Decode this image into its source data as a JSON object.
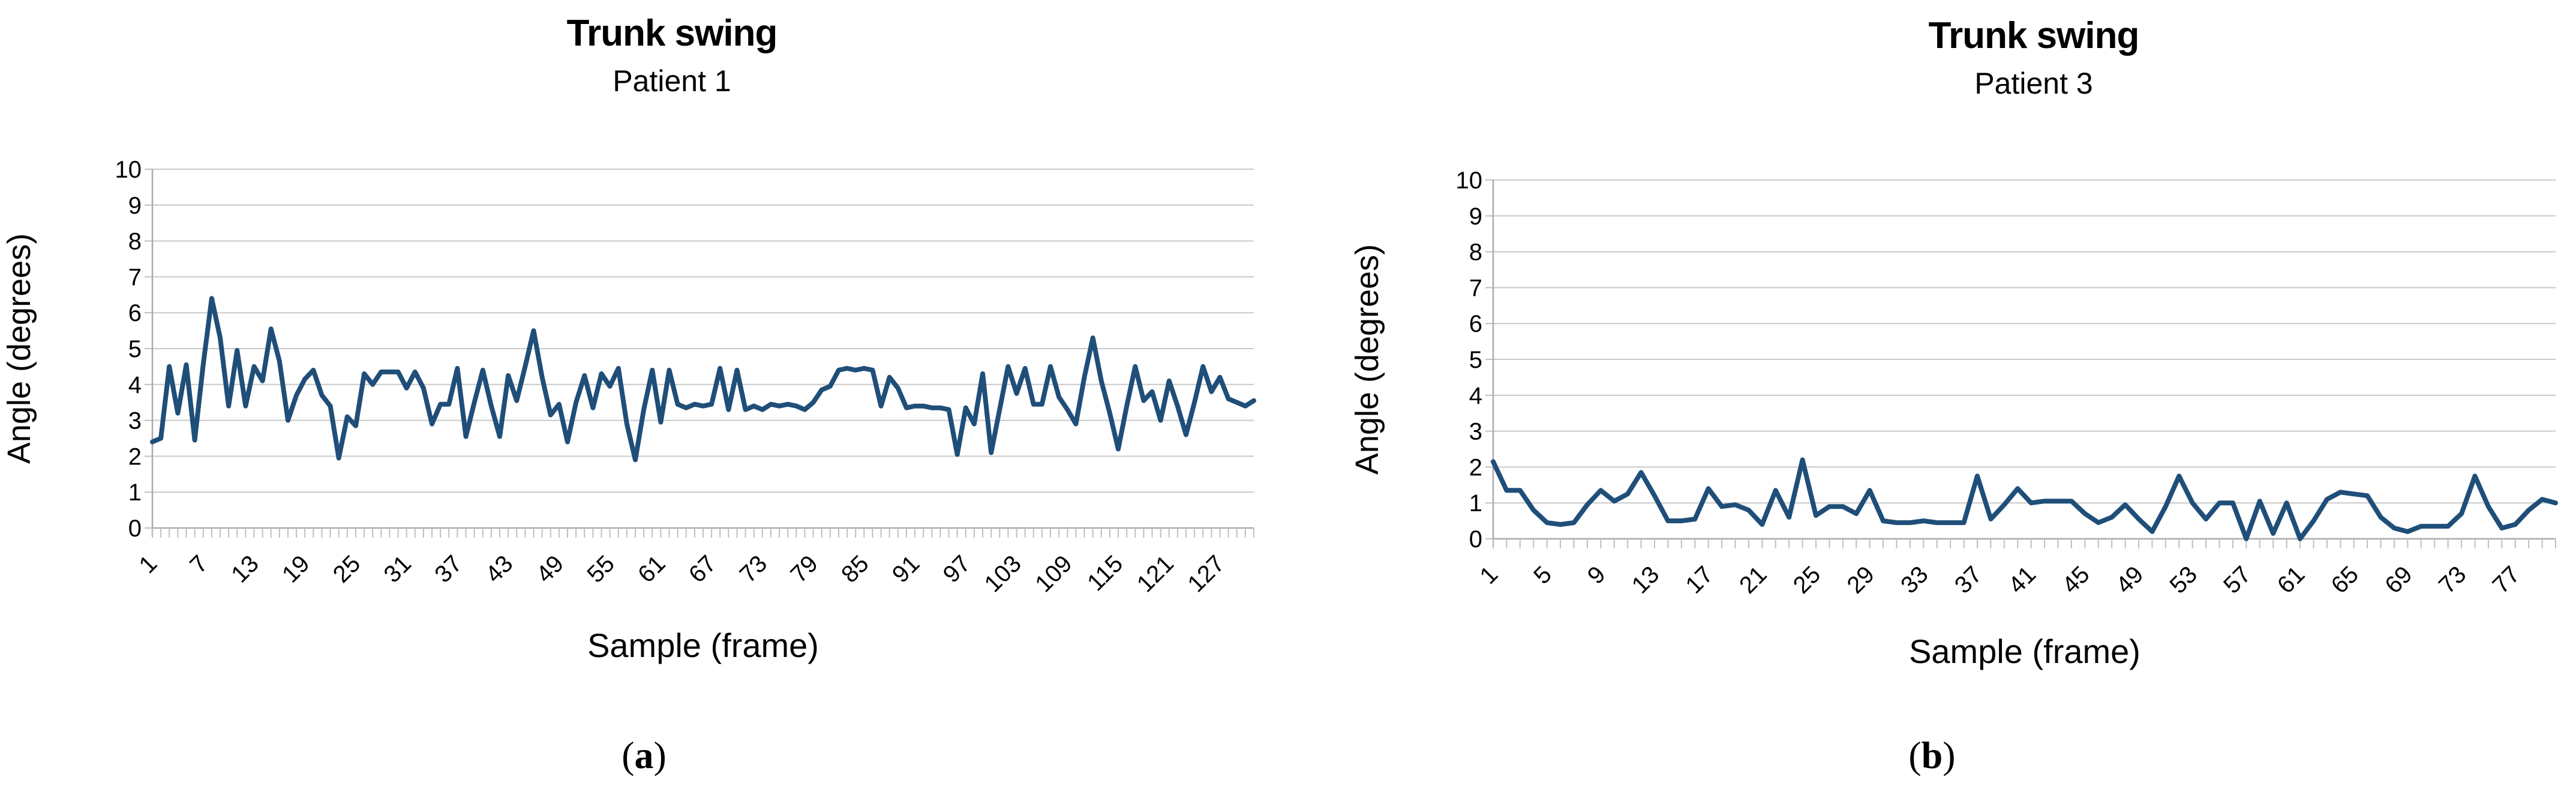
{
  "figure": {
    "background": "#FFFFFF",
    "line_color": "#1F4E79",
    "gridline_color": "#C9C9C9",
    "axis_color": "#ABABAB",
    "tick_color": "#BFBFBF",
    "text_color": "#000000"
  },
  "chart_data": [
    {
      "type": "line",
      "id": "patient1",
      "title": "Trunk swing",
      "subtitle": "Patient 1",
      "xlabel": "Sample (frame)",
      "ylabel": "Angle (degrees)",
      "ylim": [
        0,
        10
      ],
      "yticks": [
        0,
        1,
        2,
        3,
        4,
        5,
        6,
        7,
        8,
        9,
        10
      ],
      "xtick_labels": [
        1,
        7,
        13,
        19,
        25,
        31,
        37,
        43,
        49,
        55,
        61,
        67,
        73,
        79,
        85,
        91,
        97,
        103,
        109,
        115,
        121,
        127
      ],
      "grid": "horizontal",
      "legend": "none",
      "caption": {
        "open": "(",
        "label": "a",
        "close": ")"
      },
      "x_start": 1,
      "values": [
        2.4,
        2.5,
        4.5,
        3.2,
        4.55,
        2.45,
        4.55,
        6.4,
        5.3,
        3.4,
        4.95,
        3.4,
        4.5,
        4.1,
        5.55,
        4.65,
        3.0,
        3.7,
        4.15,
        4.4,
        3.7,
        3.4,
        1.95,
        3.1,
        2.85,
        4.3,
        4.0,
        4.35,
        4.35,
        4.35,
        3.9,
        4.35,
        3.9,
        2.9,
        3.45,
        3.45,
        4.45,
        2.55,
        3.5,
        4.4,
        3.4,
        2.55,
        4.25,
        3.55,
        4.5,
        5.5,
        4.2,
        3.15,
        3.45,
        2.4,
        3.5,
        4.25,
        3.35,
        4.3,
        3.95,
        4.45,
        2.9,
        1.9,
        3.3,
        4.4,
        2.95,
        4.4,
        3.45,
        3.35,
        3.45,
        3.4,
        3.45,
        4.45,
        3.3,
        4.4,
        3.3,
        3.4,
        3.3,
        3.45,
        3.4,
        3.45,
        3.4,
        3.3,
        3.5,
        3.85,
        3.95,
        4.4,
        4.45,
        4.4,
        4.45,
        4.4,
        3.4,
        4.2,
        3.9,
        3.35,
        3.4,
        3.4,
        3.35,
        3.35,
        3.3,
        2.05,
        3.35,
        2.9,
        4.3,
        2.1,
        3.3,
        4.5,
        3.75,
        4.45,
        3.45,
        3.45,
        4.5,
        3.65,
        3.3,
        2.9,
        4.2,
        5.3,
        4.1,
        3.2,
        2.2,
        3.4,
        4.5,
        3.55,
        3.8,
        3.0,
        4.1,
        3.4,
        2.6,
        3.5,
        4.5,
        3.8,
        4.2,
        3.6,
        3.5,
        3.4,
        3.55
      ]
    },
    {
      "type": "line",
      "id": "patient3",
      "title": "Trunk swing",
      "subtitle": "Patient 3",
      "xlabel": "Sample (frame)",
      "ylabel": "Angle (degrees)",
      "ylim": [
        0,
        10
      ],
      "yticks": [
        0,
        1,
        2,
        3,
        4,
        5,
        6,
        7,
        8,
        9,
        10
      ],
      "xtick_labels": [
        1,
        5,
        9,
        13,
        17,
        21,
        25,
        29,
        33,
        37,
        41,
        45,
        49,
        53,
        57,
        61,
        65,
        69,
        73,
        77
      ],
      "grid": "horizontal",
      "legend": "none",
      "caption": {
        "open": "(",
        "label": "b",
        "close": ")"
      },
      "x_start": 1,
      "values": [
        2.15,
        1.35,
        1.35,
        0.8,
        0.45,
        0.4,
        0.45,
        0.95,
        1.35,
        1.05,
        1.25,
        1.85,
        1.2,
        0.5,
        0.5,
        0.55,
        1.4,
        0.9,
        0.95,
        0.8,
        0.4,
        1.35,
        0.6,
        2.2,
        0.65,
        0.9,
        0.9,
        0.7,
        1.35,
        0.5,
        0.45,
        0.45,
        0.5,
        0.45,
        0.45,
        0.45,
        1.75,
        0.55,
        0.95,
        1.4,
        1.0,
        1.05,
        1.05,
        1.05,
        0.7,
        0.45,
        0.6,
        0.95,
        0.55,
        0.2,
        0.9,
        1.75,
        1.0,
        0.55,
        1.0,
        1.0,
        0.0,
        1.05,
        0.15,
        1.0,
        0.0,
        0.5,
        1.1,
        1.3,
        1.25,
        1.2,
        0.6,
        0.3,
        0.2,
        0.35,
        0.35,
        0.35,
        0.7,
        1.75,
        0.9,
        0.3,
        0.4,
        0.8,
        1.1,
        1.0
      ]
    }
  ]
}
